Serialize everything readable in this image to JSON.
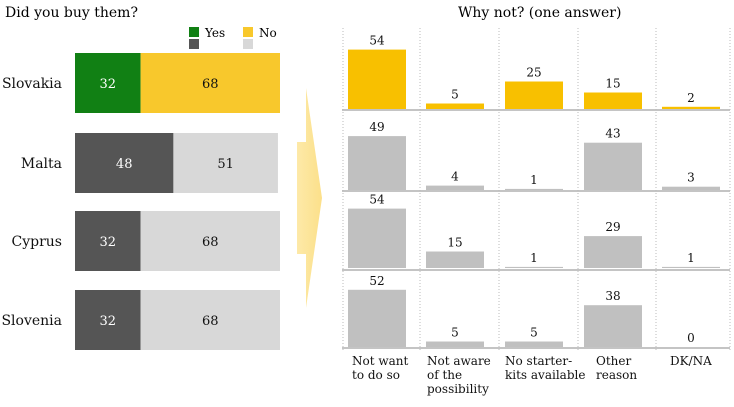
{
  "chart_data": [
    {
      "type": "bar",
      "orientation": "horizontal-stacked",
      "title": "Did you buy them?",
      "legend": [
        {
          "label": "Yes",
          "colors": [
            "#118014",
            "#555555"
          ]
        },
        {
          "label": "No",
          "colors": [
            "#F8C82C",
            "#D8D8D8"
          ]
        }
      ],
      "legend_position": "top-right",
      "categories": [
        "Slovakia",
        "Malta",
        "Cyprus",
        "Slovenia"
      ],
      "series": [
        {
          "name": "Yes",
          "values": [
            32,
            48,
            32,
            32
          ]
        },
        {
          "name": "No",
          "values": [
            68,
            51,
            68,
            68
          ]
        }
      ],
      "highlight_category": "Slovakia",
      "colors": {
        "yes": "#118014",
        "no": "#F8C82C",
        "yes_other": "#555555",
        "no_other": "#D8D8D8"
      }
    },
    {
      "type": "bar",
      "orientation": "vertical-small-multiples",
      "title": "Why not? (one answer)",
      "categories": [
        "Not want to do so",
        "Not aware of the possibility",
        "No starter-kits available",
        "Other reason",
        "DK/NA"
      ],
      "category_lines": [
        [
          "Not want",
          "to do so"
        ],
        [
          "Not aware",
          "of the",
          "possibility"
        ],
        [
          "No starter-",
          "kits available"
        ],
        [
          "Other",
          "reason"
        ],
        [
          "DK/NA"
        ]
      ],
      "panels": [
        {
          "country": "Slovakia",
          "values": [
            54,
            5,
            25,
            15,
            2
          ]
        },
        {
          "country": "Malta",
          "values": [
            49,
            4,
            1,
            43,
            3
          ]
        },
        {
          "country": "Cyprus",
          "values": [
            54,
            15,
            1,
            29,
            1
          ]
        },
        {
          "country": "Slovenia",
          "values": [
            52,
            5,
            5,
            38,
            0
          ]
        }
      ],
      "colors": {
        "highlight": "#F8C000",
        "other": "#C0C0C0"
      },
      "grid": false
    }
  ]
}
